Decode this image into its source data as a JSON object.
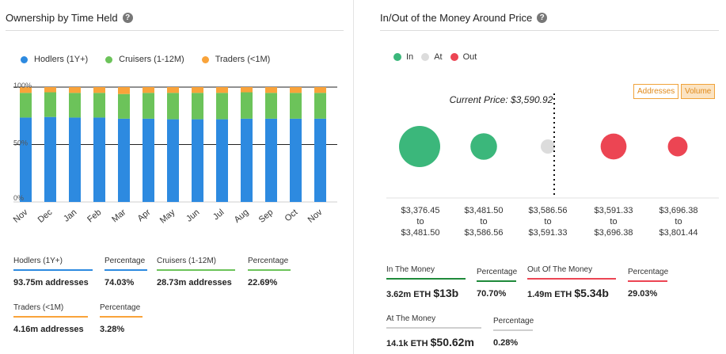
{
  "left": {
    "title": "Ownership by Time Held",
    "legend": [
      {
        "label": "Hodlers (1Y+)",
        "color": "#2d8ae0"
      },
      {
        "label": "Cruisers (1-12M)",
        "color": "#6cc35a"
      },
      {
        "label": "Traders (<1M)",
        "color": "#f9a33a"
      }
    ],
    "stats": [
      {
        "label": "Hodlers (1Y+)",
        "value": "93.75m addresses",
        "color": "#2d8ae0"
      },
      {
        "label": "Percentage",
        "value": "74.03%",
        "color": "#2d8ae0"
      },
      {
        "label": "Cruisers (1-12M)",
        "value": "28.73m addresses",
        "color": "#6cc35a"
      },
      {
        "label": "Percentage",
        "value": "22.69%",
        "color": "#6cc35a"
      },
      {
        "label": "Traders (<1M)",
        "value": "4.16m addresses",
        "color": "#f9a33a"
      },
      {
        "label": "Percentage",
        "value": "3.28%",
        "color": "#f9a33a"
      }
    ]
  },
  "right": {
    "title": "In/Out of the Money Around Price",
    "legend": [
      {
        "label": "In",
        "color": "#3bb77b"
      },
      {
        "label": "At",
        "color": "#dcdcdc"
      },
      {
        "label": "Out",
        "color": "#ec4553"
      }
    ],
    "buttons": [
      {
        "label": "Addresses",
        "active": false
      },
      {
        "label": "Volume",
        "active": true
      }
    ],
    "current_price_label": "Current Price: $3,590.92",
    "ranges": [
      {
        "low": "$3,376.45",
        "to": "to",
        "high": "$3,481.50"
      },
      {
        "low": "$3,481.50",
        "to": "to",
        "high": "$3,586.56"
      },
      {
        "low": "$3,586.56",
        "to": "to",
        "high": "$3,591.33"
      },
      {
        "low": "$3,591.33",
        "to": "to",
        "high": "$3,696.38"
      },
      {
        "low": "$3,696.38",
        "to": "to",
        "high": "$3,801.44"
      }
    ],
    "stats": {
      "in_label": "In The Money",
      "in_value": "3.62m ETH ",
      "in_big": "$13b",
      "in_color": "#1f8a3a",
      "in_pct_label": "Percentage",
      "in_pct": "70.70%",
      "out_label": "Out Of The Money",
      "out_value": "1.49m ETH ",
      "out_big": "$5.34b",
      "out_color": "#ec4553",
      "out_pct_label": "Percentage",
      "out_pct": "29.03%",
      "at_label": "At The Money",
      "at_value": "14.1k ETH ",
      "at_big": "$50.62m",
      "at_color": "#cfcfcf",
      "at_pct_label": "Percentage",
      "at_pct": "0.28%"
    }
  },
  "chart_data": [
    {
      "type": "bar",
      "stacked": true,
      "categories": [
        "Nov",
        "Dec",
        "Jan",
        "Feb",
        "Mar",
        "Apr",
        "May",
        "Jun",
        "Jul",
        "Aug",
        "Sep",
        "Oct",
        "Nov"
      ],
      "series": [
        {
          "name": "Hodlers (1Y+)",
          "color": "#2d8ae0",
          "values": [
            73.5,
            74,
            73.5,
            73.5,
            72.5,
            72.5,
            72,
            72,
            72,
            72.5,
            72.5,
            72.5,
            72.5
          ]
        },
        {
          "name": "Cruisers (1-12M)",
          "color": "#6cc35a",
          "values": [
            21.5,
            21.5,
            21.5,
            21.5,
            21.5,
            22.5,
            23,
            23,
            23,
            23,
            22.5,
            22.5,
            22.5
          ]
        },
        {
          "name": "Traders (<1M)",
          "color": "#f9a33a",
          "values": [
            5,
            4.5,
            5,
            5,
            6,
            5,
            5,
            5,
            5,
            4.5,
            5,
            5,
            5
          ]
        }
      ],
      "yticks": [
        "100%",
        "50%",
        "0%"
      ],
      "ylim": [
        0,
        100
      ],
      "grid": true
    },
    {
      "type": "scatter",
      "categories": [
        "$3,376.45 to $3,481.50",
        "$3,481.50 to $3,586.56",
        "$3,586.56 to $3,591.33",
        "$3,591.33 to $3,696.38",
        "$3,696.38 to $3,801.44"
      ],
      "status": [
        "In",
        "In",
        "At",
        "Out",
        "Out"
      ],
      "volume_eth_m": [
        2.4,
        1.0,
        0.0141,
        0.95,
        0.55
      ],
      "colors": [
        "#3bb77b",
        "#3bb77b",
        "#dcdcdc",
        "#ec4553",
        "#ec4553"
      ],
      "current_price": 3590.92
    }
  ]
}
